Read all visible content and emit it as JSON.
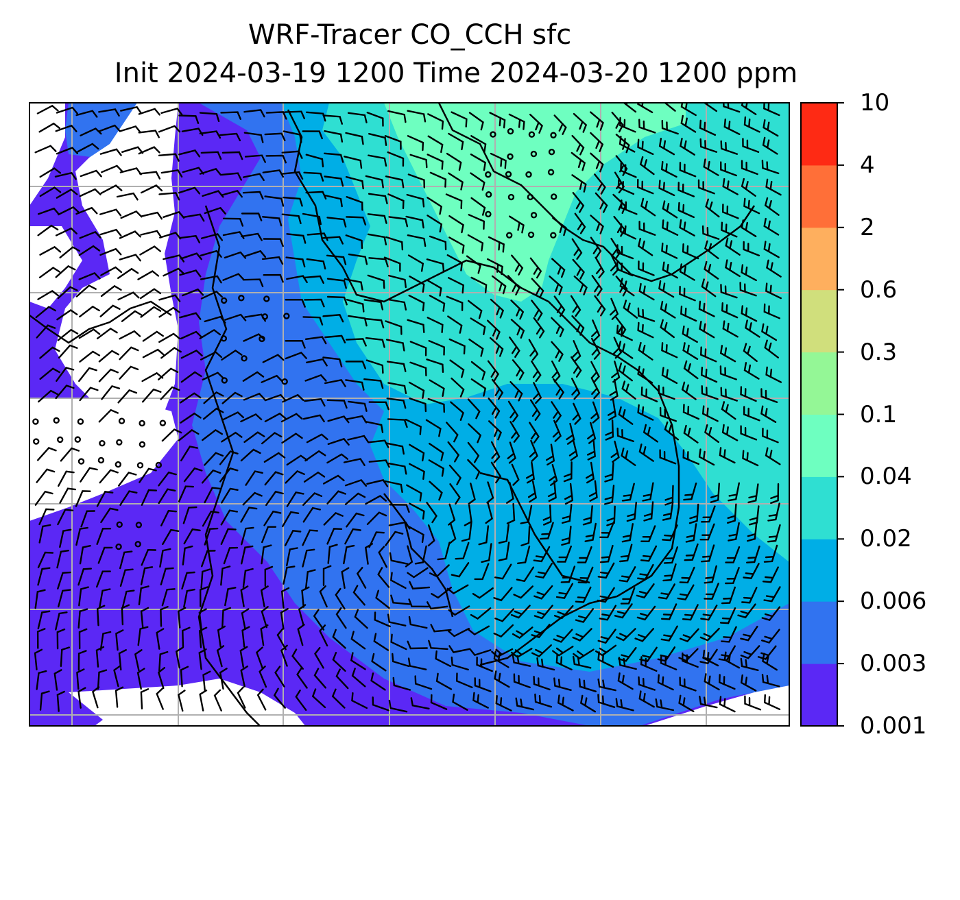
{
  "figure": {
    "title_line1": "WRF-Tracer CO_CCH sfc",
    "title_line2": "Init 2024-03-19 1200 Time 2024-03-20 1200 ppm"
  },
  "colorbar": {
    "levels": [
      "0.001",
      "0.003",
      "0.006",
      "0.02",
      "0.04",
      "0.1",
      "0.3",
      "0.6",
      "2",
      "4",
      "10"
    ],
    "colors": [
      "#5b28f5",
      "#3173f0",
      "#00aee6",
      "#2fdfd2",
      "#6effc0",
      "#94f796",
      "#d0df7c",
      "#feaf5e",
      "#ff6f38",
      "#fe2a14"
    ]
  },
  "map": {
    "field": "surface CO tracer concentration with wind barbs",
    "gridlines": true,
    "background_below_min": "#ffffff"
  }
}
